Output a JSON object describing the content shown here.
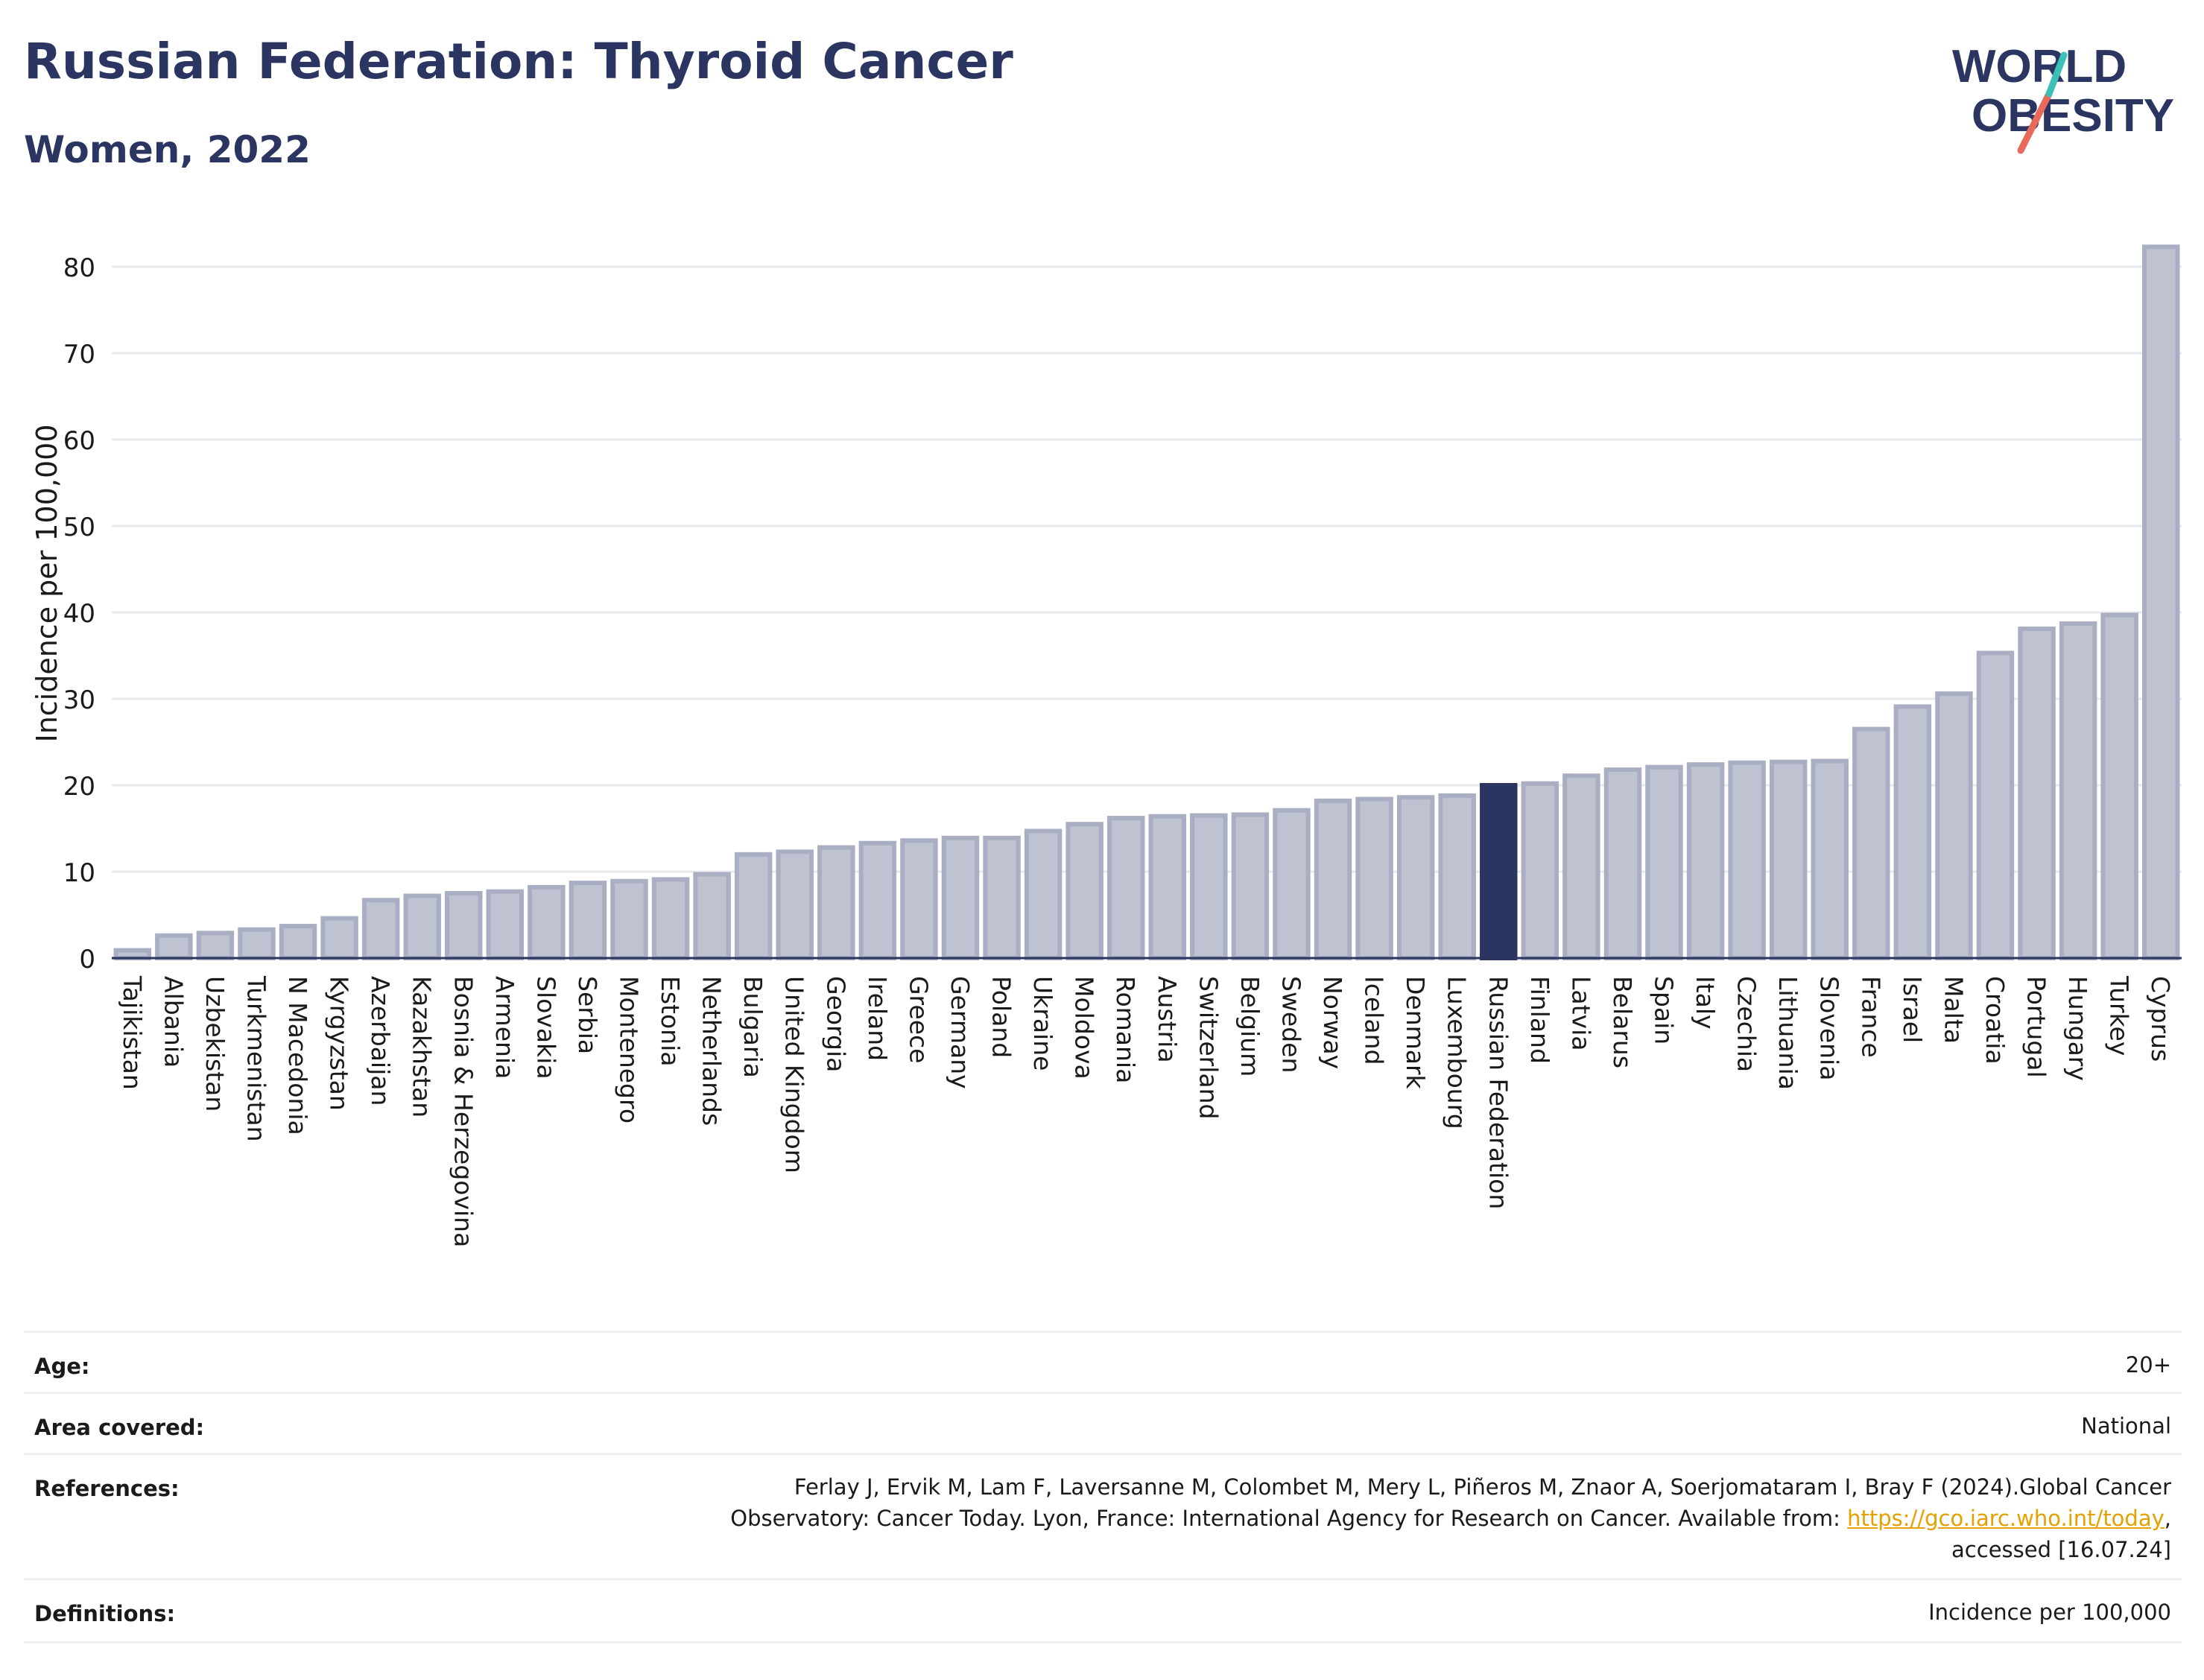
{
  "header": {
    "title": "Russian Federation: Thyroid Cancer",
    "subtitle": "Women, 2022"
  },
  "logo": {
    "line1": "WORLD",
    "line2": "OBESITY"
  },
  "colors": {
    "bar_fill": "#bec2d1",
    "bar_stroke": "#a9aec2",
    "highlight": "#2b3561",
    "title": "#2b3561"
  },
  "chart_data": {
    "type": "bar",
    "ylabel": "Incidence per 100,000",
    "ylim": [
      0,
      85
    ],
    "yticks": [
      0,
      10,
      20,
      30,
      40,
      50,
      60,
      70,
      80
    ],
    "grid": true,
    "highlight": "Russian Federation",
    "categories": [
      "Tajikistan",
      "Albania",
      "Uzbekistan",
      "Turkmenistan",
      "N Macedonia",
      "Kyrgyzstan",
      "Azerbaijan",
      "Kazakhstan",
      "Bosnia & Herzegovina",
      "Armenia",
      "Slovakia",
      "Serbia",
      "Montenegro",
      "Estonia",
      "Netherlands",
      "Bulgaria",
      "United Kingdom",
      "Georgia",
      "Ireland",
      "Greece",
      "Germany",
      "Poland",
      "Ukraine",
      "Moldova",
      "Romania",
      "Austria",
      "Switzerland",
      "Belgium",
      "Sweden",
      "Norway",
      "Iceland",
      "Denmark",
      "Luxembourg",
      "Russian Federation",
      "Finland",
      "Latvia",
      "Belarus",
      "Spain",
      "Italy",
      "Czechia",
      "Lithuania",
      "Slovenia",
      "France",
      "Israel",
      "Malta",
      "Croatia",
      "Portugal",
      "Hungary",
      "Turkey",
      "Cyprus"
    ],
    "values": [
      0.9,
      2.6,
      2.9,
      3.3,
      3.7,
      4.6,
      6.7,
      7.2,
      7.5,
      7.7,
      8.2,
      8.7,
      8.9,
      9.1,
      9.7,
      12.0,
      12.3,
      12.8,
      13.3,
      13.6,
      13.9,
      13.9,
      14.7,
      15.5,
      16.2,
      16.4,
      16.5,
      16.6,
      17.1,
      18.2,
      18.4,
      18.6,
      18.8,
      20.0,
      20.2,
      21.1,
      21.8,
      22.1,
      22.4,
      22.6,
      22.7,
      22.8,
      26.5,
      29.1,
      30.6,
      35.3,
      38.1,
      38.7,
      39.7,
      82.3
    ]
  },
  "info": {
    "age": {
      "label": "Age:",
      "value": "20+"
    },
    "area": {
      "label": "Area covered:",
      "value": "National"
    },
    "references": {
      "label": "References:",
      "line1": "Ferlay J, Ervik M, Lam F, Laversanne M, Colombet M, Mery L, Piñeros M, Znaor A, Soerjomataram I, Bray F (2024).Global Cancer",
      "line2_pre": "Observatory: Cancer Today. Lyon, France: International Agency for Research on Cancer. Available from: ",
      "link": "https://gco.iarc.who.int/today",
      "line2_post": ",",
      "line3": "accessed [16.07.24]"
    },
    "definitions": {
      "label": "Definitions:",
      "value": "Incidence per 100,000"
    }
  }
}
